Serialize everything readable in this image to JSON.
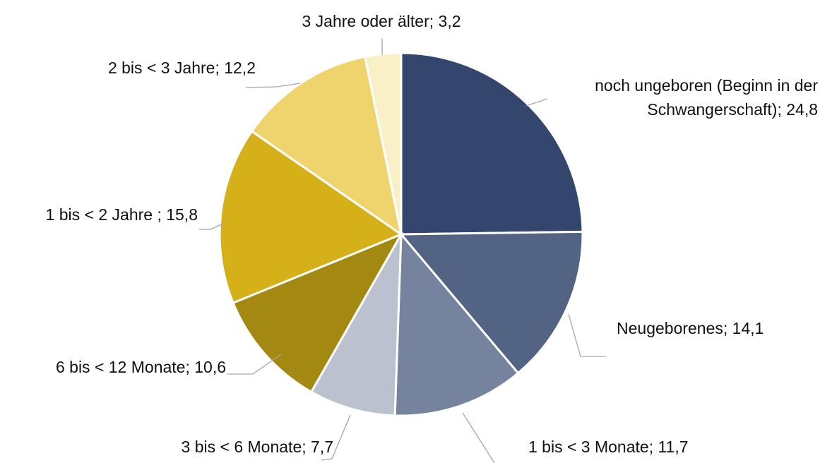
{
  "chart_data": {
    "type": "pie",
    "labels": [
      "noch ungeboren (Beginn in der Schwangerschaft); 24,8",
      "Neugeborenes; 14,1",
      "1 bis < 3 Monate; 11,7",
      "3 bis < 6 Monate; 7,7",
      "6 bis < 12 Monate; 10,6",
      "1 bis < 2 Jahre ; 15,8",
      "2 bis < 3 Jahre; 12,2",
      "3 Jahre oder älter; 3,2"
    ],
    "values": [
      24.8,
      14.1,
      11.7,
      7.7,
      10.6,
      15.8,
      12.2,
      3.2
    ],
    "colors": [
      "#34466e",
      "#536384",
      "#76839e",
      "#bcc1cf",
      "#a38811",
      "#d5b018",
      "#efd46e",
      "#faf0c8"
    ]
  }
}
